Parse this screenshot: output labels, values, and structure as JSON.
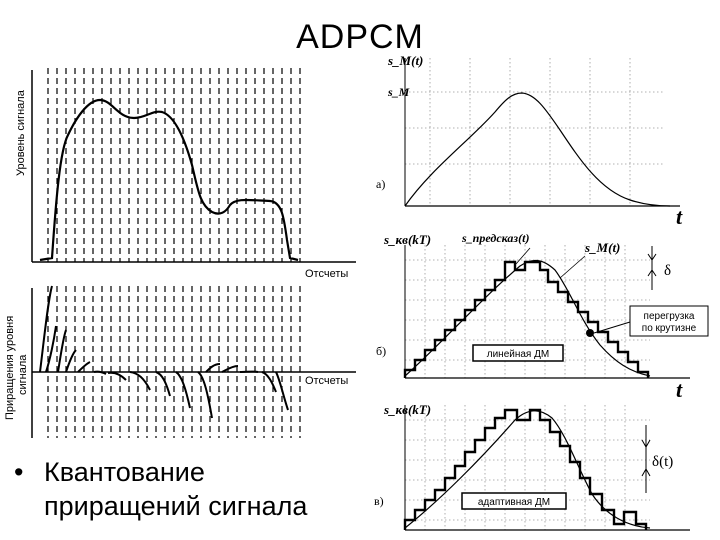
{
  "slide": {
    "title": "ADPCM"
  },
  "left_panel": {
    "top": {
      "ylabel": "Уровень сигнала",
      "xlabel": "Отсчеты"
    },
    "bottom": {
      "ylabel_line1": "Приращения уровня",
      "ylabel_line2": "сигнала",
      "xlabel": "Отсчеты"
    }
  },
  "right_panel": {
    "a": {
      "y_axis": "s_M(t)",
      "level": "s_M",
      "tag": "а)",
      "x_axis": "t"
    },
    "b": {
      "y_axis": "s_кв(kT)",
      "pred_label": "s_предсказ(t)",
      "sig_label": "s_M(t)",
      "delta": "δ",
      "overload_line1": "перегрузка",
      "overload_line2": "по крутизне",
      "tag": "б)",
      "box": "линейная ДМ",
      "x_axis": "t"
    },
    "c": {
      "y_axis": "s_кв(kT)",
      "delta": "δ(t)",
      "tag": "в)",
      "box": "адаптивная ДМ"
    }
  },
  "bullet": {
    "line1": "Квантование",
    "line2": "приращений сигнала"
  }
}
